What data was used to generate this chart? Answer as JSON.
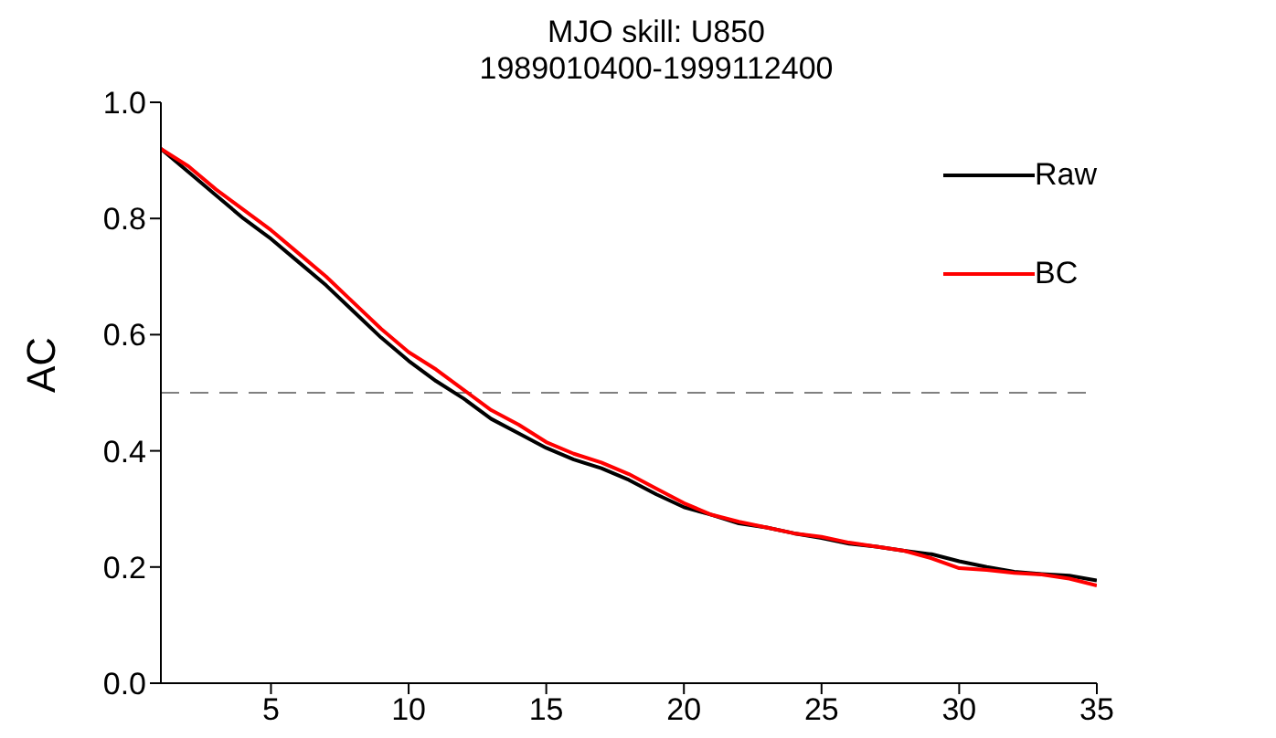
{
  "chart_data": {
    "type": "line",
    "title": "MJO skill: U850",
    "subtitle": "1989010400-1999112400",
    "ylabel": "AC",
    "x": [
      1,
      2,
      3,
      4,
      5,
      6,
      7,
      8,
      9,
      10,
      11,
      12,
      13,
      14,
      15,
      16,
      17,
      18,
      19,
      20,
      21,
      22,
      23,
      24,
      25,
      26,
      27,
      28,
      29,
      30,
      31,
      32,
      33,
      34,
      35
    ],
    "series": [
      {
        "name": "Raw",
        "color": "#000000",
        "values": [
          0.92,
          0.88,
          0.84,
          0.8,
          0.765,
          0.725,
          0.685,
          0.64,
          0.595,
          0.555,
          0.52,
          0.49,
          0.455,
          0.43,
          0.405,
          0.385,
          0.37,
          0.35,
          0.325,
          0.303,
          0.29,
          0.275,
          0.268,
          0.258,
          0.25,
          0.24,
          0.235,
          0.228,
          0.222,
          0.21,
          0.2,
          0.192,
          0.188,
          0.185,
          0.177
        ]
      },
      {
        "name": "BC",
        "color": "#ff0000",
        "values": [
          0.92,
          0.89,
          0.85,
          0.815,
          0.78,
          0.74,
          0.7,
          0.655,
          0.61,
          0.57,
          0.54,
          0.505,
          0.47,
          0.445,
          0.415,
          0.395,
          0.38,
          0.36,
          0.335,
          0.31,
          0.29,
          0.278,
          0.268,
          0.258,
          0.252,
          0.242,
          0.235,
          0.228,
          0.215,
          0.198,
          0.195,
          0.19,
          0.187,
          0.18,
          0.168
        ]
      }
    ],
    "xlim": [
      1,
      35
    ],
    "xticks": [
      5,
      10,
      15,
      20,
      25,
      30,
      35
    ],
    "ylim": [
      0,
      1
    ],
    "yticks": [
      {
        "value": 0,
        "label": "0.0"
      },
      {
        "value": 0.2,
        "label": "0.2"
      },
      {
        "value": 0.4,
        "label": "0.4"
      },
      {
        "value": 0.6,
        "label": "0.6"
      },
      {
        "value": 0.8,
        "label": "0.8"
      },
      {
        "value": 1,
        "label": "1.0"
      }
    ],
    "ref_lines": [
      {
        "axis": "y",
        "value": 0.5,
        "color": "#808080",
        "line_style": "dashed"
      }
    ],
    "legend": "top right",
    "grid": false,
    "marker": "none",
    "line_style": "solid"
  }
}
